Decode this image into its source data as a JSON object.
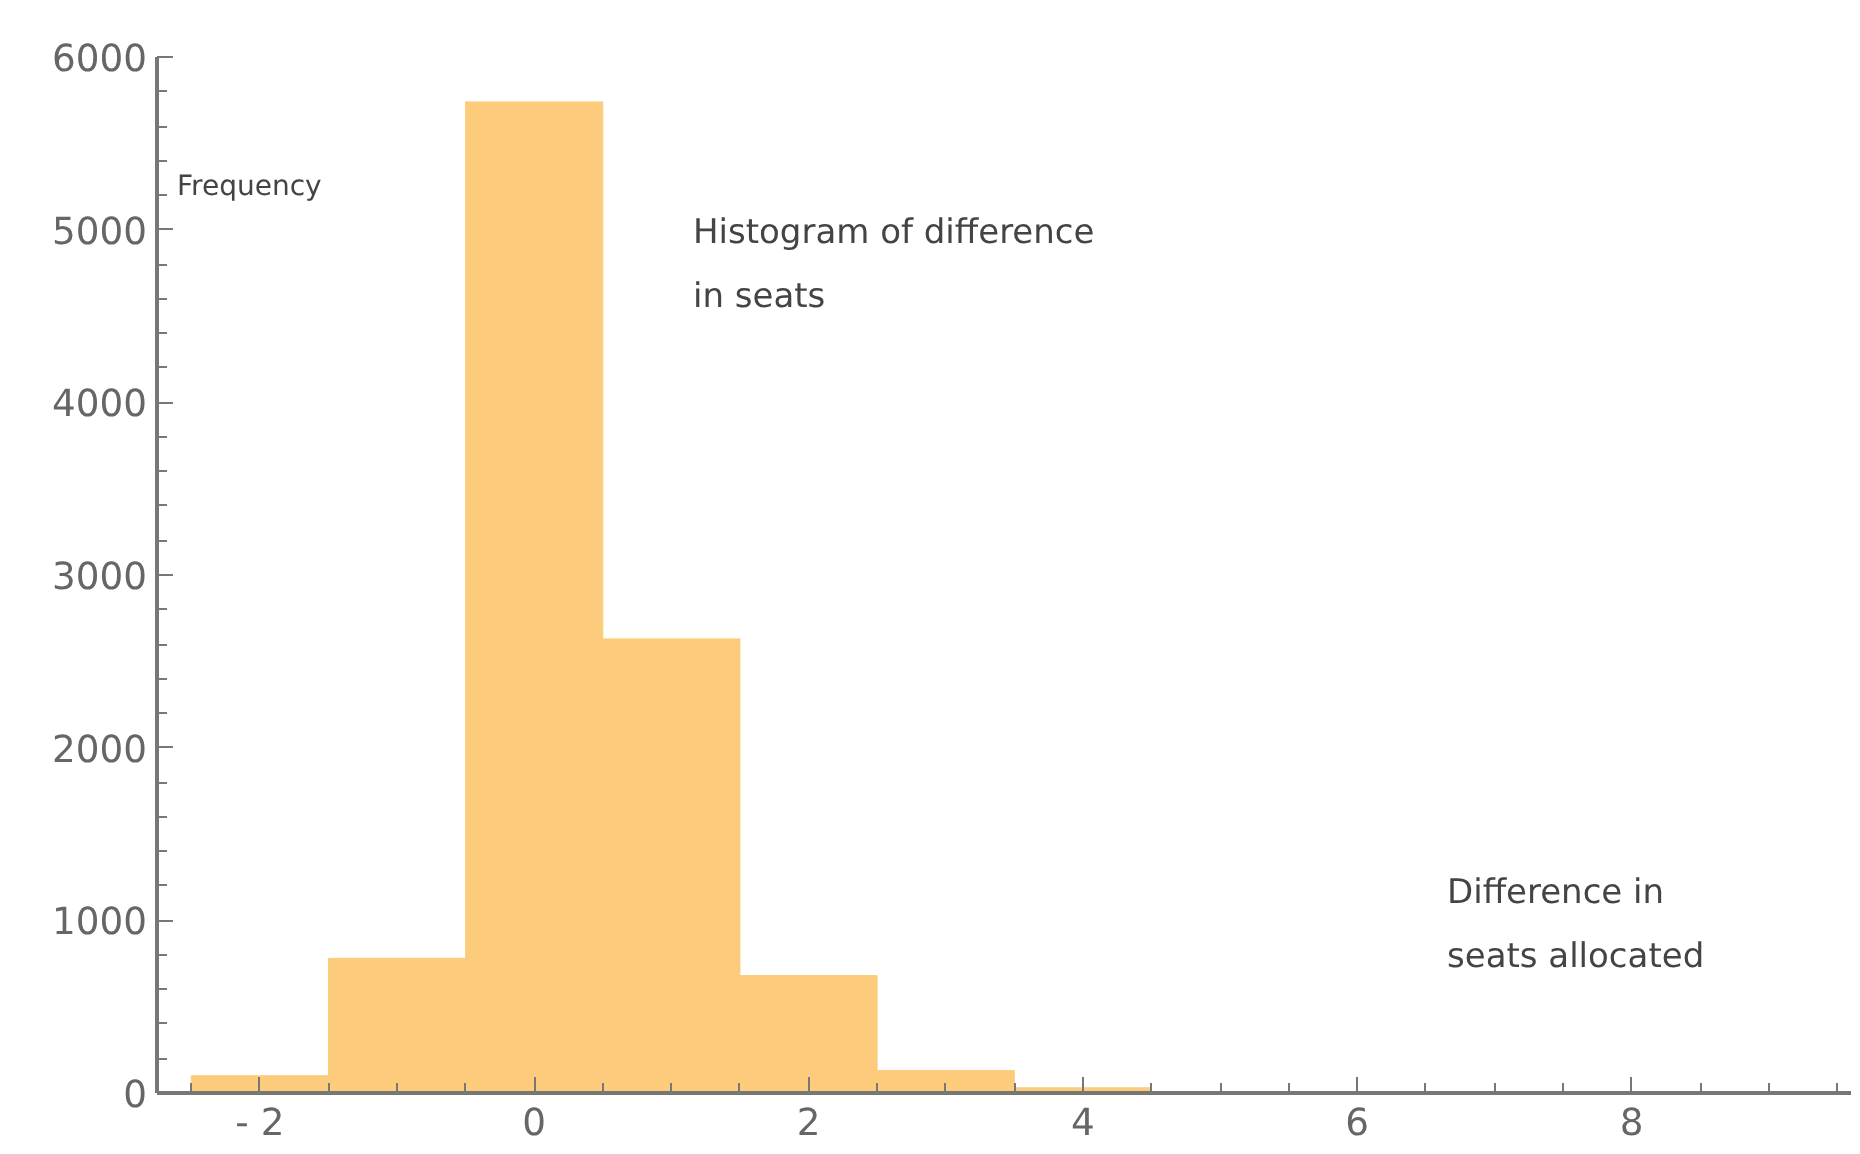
{
  "chart_data": {
    "type": "histogram",
    "title": "Histogram of difference\nin seats",
    "xlabel": "Difference in\nseats allocated",
    "ylabel": "Frequency",
    "bins": [
      -2.5,
      -1.5,
      -0.5,
      0.5,
      1.5,
      2.5,
      3.5,
      4.5
    ],
    "values": [
      100,
      780,
      5740,
      2630,
      680,
      130,
      30
    ],
    "color": "#fccc7c",
    "xlim": [
      -2.75,
      9.6
    ],
    "ylim": [
      0,
      6000
    ],
    "xticks": [
      {
        "value": -2,
        "label": "- 2"
      },
      0,
      2,
      4,
      6,
      8
    ],
    "yticks": [
      0,
      1000,
      2000,
      3000,
      4000,
      5000,
      6000
    ],
    "grid": false
  }
}
